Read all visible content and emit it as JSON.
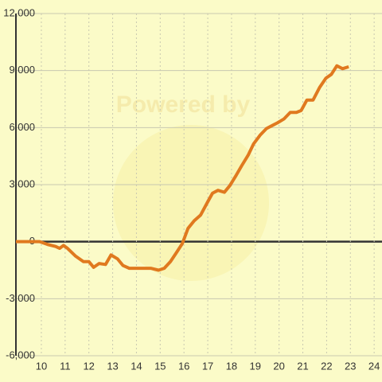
{
  "chart_data": {
    "type": "line",
    "watermark": "Powered by",
    "series": [
      {
        "name": null,
        "color": "#e0791f",
        "x": [
          8.93,
          9.93,
          10.27,
          10.6,
          10.77,
          10.93,
          11.1,
          11.43,
          11.77,
          12.0,
          12.2,
          12.43,
          12.7,
          12.93,
          13.2,
          13.43,
          13.7,
          14.1,
          14.6,
          14.93,
          15.17,
          15.43,
          15.67,
          15.93,
          16.17,
          16.43,
          16.7,
          17.0,
          17.2,
          17.43,
          17.7,
          17.93,
          18.2,
          18.43,
          18.7,
          18.93,
          19.2,
          19.47,
          19.7,
          19.93,
          20.2,
          20.47,
          20.73,
          20.93,
          21.17,
          21.43,
          21.7,
          21.97,
          22.2,
          22.43,
          22.67,
          22.93
        ],
        "values": [
          0,
          0,
          -150,
          -250,
          -350,
          -200,
          -350,
          -750,
          -1050,
          -1050,
          -1350,
          -1150,
          -1200,
          -700,
          -900,
          -1250,
          -1400,
          -1400,
          -1400,
          -1500,
          -1400,
          -1050,
          -600,
          -100,
          700,
          1100,
          1400,
          2100,
          2550,
          2700,
          2600,
          2950,
          3500,
          4000,
          4550,
          5150,
          5600,
          5950,
          6100,
          6250,
          6450,
          6800,
          6800,
          6900,
          7450,
          7450,
          8100,
          8600,
          8800,
          9250,
          9100,
          9200
        ]
      }
    ],
    "xlim": [
      8.93,
      24.33
    ],
    "xticks": [
      10,
      11,
      12,
      13,
      14,
      15,
      16,
      17,
      18,
      19,
      20,
      21,
      22,
      23,
      24
    ],
    "ylim": [
      -6000,
      12000
    ],
    "yticks": [
      {
        "value": -6000,
        "label": "-6,000"
      },
      {
        "value": -3000,
        "label": "-3,000"
      },
      0,
      {
        "value": 3000,
        "label": "3,000"
      },
      {
        "value": 6000,
        "label": "6,000"
      },
      {
        "value": 9000,
        "label": "9,000"
      },
      {
        "value": 12000,
        "label": "12,000"
      }
    ],
    "grid": true
  }
}
